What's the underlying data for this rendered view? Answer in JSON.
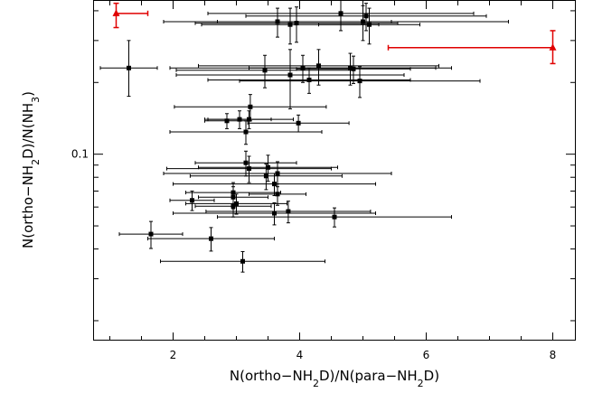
{
  "chart_data": {
    "type": "scatter",
    "title": "",
    "xlabel": "N(ortho−NH₂D)/N(para−NH₂D)",
    "ylabel": "N(ortho−NH₂D)/N(NH₃)",
    "xlim": [
      0.75,
      8.35
    ],
    "ylim": [
      0.0165,
      0.44
    ],
    "yscale": "log",
    "x_ticks": [
      2,
      4,
      6,
      8
    ],
    "x_tick_labels": [
      "2",
      "4",
      "6",
      "8"
    ],
    "y_ticks": [
      0.1
    ],
    "y_tick_labels": [
      "0.1"
    ],
    "grid": false,
    "colors": {
      "black": "#000000",
      "red": "#e00000"
    },
    "series": [
      {
        "color": "#000000",
        "marker": "square",
        "points": [
          {
            "x": 1.3,
            "y": 0.23,
            "xerr": [
              0.45,
              0.45
            ],
            "yerr": [
              0.055,
              0.07
            ]
          },
          {
            "x": 4.65,
            "y": 0.39,
            "xerr": [
              2.1,
              2.1
            ],
            "yerr": [
              0.06,
              0.06
            ]
          },
          {
            "x": 5.05,
            "y": 0.38,
            "xerr": [
              1.9,
              1.9
            ],
            "yerr": [
              0.05,
              0.05
            ]
          },
          {
            "x": 5.0,
            "y": 0.36,
            "xerr": [
              2.3,
              2.3
            ],
            "yerr": [
              0.06,
              0.06
            ]
          },
          {
            "x": 3.65,
            "y": 0.36,
            "xerr": [
              1.8,
              1.8
            ],
            "yerr": [
              0.05,
              0.05
            ]
          },
          {
            "x": 3.95,
            "y": 0.355,
            "xerr": [
              1.6,
              1.6
            ],
            "yerr": [
              0.06,
              0.06
            ]
          },
          {
            "x": 3.85,
            "y": 0.35,
            "xerr": [
              1.4,
              1.4
            ],
            "yerr": [
              0.06,
              0.06
            ]
          },
          {
            "x": 5.1,
            "y": 0.35,
            "xerr": [
              0.8,
              0.8
            ],
            "yerr": [
              0.06,
              0.06
            ]
          },
          {
            "x": 4.3,
            "y": 0.235,
            "xerr": [
              1.9,
              1.9
            ],
            "yerr": [
              0.04,
              0.04
            ]
          },
          {
            "x": 4.8,
            "y": 0.23,
            "xerr": [
              1.6,
              1.6
            ],
            "yerr": [
              0.035,
              0.035
            ]
          },
          {
            "x": 4.05,
            "y": 0.23,
            "xerr": [
              2.1,
              2.1
            ],
            "yerr": [
              0.03,
              0.03
            ]
          },
          {
            "x": 4.85,
            "y": 0.228,
            "xerr": [
              0.9,
              0.9
            ],
            "yerr": [
              0.03,
              0.03
            ]
          },
          {
            "x": 3.45,
            "y": 0.225,
            "xerr": [
              1.4,
              1.4
            ],
            "yerr": [
              0.035,
              0.035
            ]
          },
          {
            "x": 3.85,
            "y": 0.215,
            "xerr": [
              1.8,
              1.8
            ],
            "yerr": [
              0.06,
              0.06
            ]
          },
          {
            "x": 4.15,
            "y": 0.205,
            "xerr": [
              1.6,
              1.6
            ],
            "yerr": [
              0.025,
              0.025
            ]
          },
          {
            "x": 4.95,
            "y": 0.203,
            "xerr": [
              1.9,
              1.9
            ],
            "yerr": [
              0.03,
              0.03
            ]
          },
          {
            "x": 3.22,
            "y": 0.158,
            "xerr": [
              1.2,
              1.2
            ],
            "yerr": [
              0.02,
              0.02
            ]
          },
          {
            "x": 3.05,
            "y": 0.14,
            "xerr": [
              0.5,
              0.5
            ],
            "yerr": [
              0.012,
              0.012
            ]
          },
          {
            "x": 3.2,
            "y": 0.14,
            "xerr": [
              0.7,
              0.7
            ],
            "yerr": [
              0.012,
              0.012
            ]
          },
          {
            "x": 2.85,
            "y": 0.138,
            "xerr": [
              0.35,
              0.35
            ],
            "yerr": [
              0.01,
              0.01
            ]
          },
          {
            "x": 3.98,
            "y": 0.135,
            "xerr": [
              0.8,
              0.8
            ],
            "yerr": [
              0.011,
              0.011
            ]
          },
          {
            "x": 3.15,
            "y": 0.124,
            "xerr": [
              1.2,
              1.2
            ],
            "yerr": [
              0.014,
              0.014
            ]
          },
          {
            "x": 3.15,
            "y": 0.092,
            "xerr": [
              0.8,
              0.8
            ],
            "yerr": [
              0.011,
              0.011
            ]
          },
          {
            "x": 3.5,
            "y": 0.088,
            "xerr": [
              1.1,
              1.1
            ],
            "yerr": [
              0.011,
              0.011
            ]
          },
          {
            "x": 3.2,
            "y": 0.087,
            "xerr": [
              1.3,
              1.3
            ],
            "yerr": [
              0.011,
              0.011
            ]
          },
          {
            "x": 3.65,
            "y": 0.083,
            "xerr": [
              1.8,
              1.8
            ],
            "yerr": [
              0.01,
              0.01
            ]
          },
          {
            "x": 3.47,
            "y": 0.081,
            "xerr": [
              1.2,
              1.2
            ],
            "yerr": [
              0.01,
              0.01
            ]
          },
          {
            "x": 3.6,
            "y": 0.075,
            "xerr": [
              1.6,
              1.6
            ],
            "yerr": [
              0.008,
              0.008
            ]
          },
          {
            "x": 2.95,
            "y": 0.069,
            "xerr": [
              0.75,
              0.75
            ],
            "yerr": [
              0.007,
              0.007
            ]
          },
          {
            "x": 3.65,
            "y": 0.068,
            "xerr": [
              0.45,
              0.45
            ],
            "yerr": [
              0.007,
              0.007
            ]
          },
          {
            "x": 2.95,
            "y": 0.066,
            "xerr": [
              0.55,
              0.55
            ],
            "yerr": [
              0.007,
              0.007
            ]
          },
          {
            "x": 2.3,
            "y": 0.064,
            "xerr": [
              0.35,
              0.35
            ],
            "yerr": [
              0.006,
              0.006
            ]
          },
          {
            "x": 3.0,
            "y": 0.062,
            "xerr": [
              0.8,
              0.8
            ],
            "yerr": [
              0.006,
              0.006
            ]
          },
          {
            "x": 2.95,
            "y": 0.0605,
            "xerr": [
              0.6,
              0.6
            ],
            "yerr": [
              0.006,
              0.006
            ]
          },
          {
            "x": 3.82,
            "y": 0.0575,
            "xerr": [
              1.3,
              1.3
            ],
            "yerr": [
              0.006,
              0.006
            ]
          },
          {
            "x": 3.6,
            "y": 0.0565,
            "xerr": [
              1.6,
              1.6
            ],
            "yerr": [
              0.006,
              0.006
            ]
          },
          {
            "x": 4.55,
            "y": 0.0545,
            "xerr": [
              1.85,
              1.85
            ],
            "yerr": [
              0.005,
              0.005
            ]
          },
          {
            "x": 1.65,
            "y": 0.0462,
            "xerr": [
              0.5,
              0.5
            ],
            "yerr": [
              0.006,
              0.006
            ]
          },
          {
            "x": 2.6,
            "y": 0.0442,
            "xerr": [
              1.0,
              1.0
            ],
            "yerr": [
              0.005,
              0.005
            ]
          },
          {
            "x": 3.1,
            "y": 0.0355,
            "xerr": [
              1.3,
              1.3
            ],
            "yerr": [
              0.0035,
              0.0035
            ]
          }
        ]
      },
      {
        "color": "#e00000",
        "marker": "triangle",
        "points": [
          {
            "x": 1.1,
            "y": 0.39,
            "xerr": [
              0.0,
              0.5
            ],
            "yerr": [
              0.05,
              0.04
            ]
          },
          {
            "x": 8.0,
            "y": 0.28,
            "xerr": [
              2.6,
              0.0
            ],
            "yerr": [
              0.04,
              0.05
            ]
          }
        ]
      }
    ]
  }
}
